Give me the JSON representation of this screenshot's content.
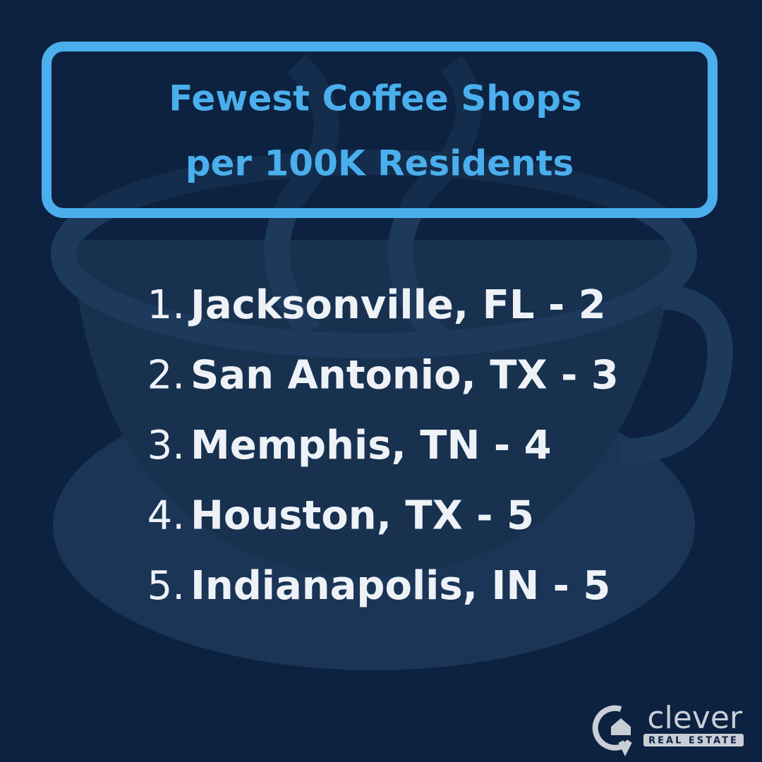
{
  "header": {
    "title_lines": [
      "Fewest Coffee Shops",
      "per 100K Residents"
    ]
  },
  "list": {
    "items": [
      {
        "number": "1.",
        "text": "Jacksonville, FL - 2"
      },
      {
        "number": "2.",
        "text": "San Antonio, TX - 3"
      },
      {
        "number": "3.",
        "text": "Memphis, TN - 4"
      },
      {
        "number": "4.",
        "text": "Houston, TX - 5"
      },
      {
        "number": "5.",
        "text": "Indianapolis, IN - 5"
      }
    ]
  },
  "logo": {
    "name": "clever",
    "tagline": "REAL ESTATE"
  }
}
